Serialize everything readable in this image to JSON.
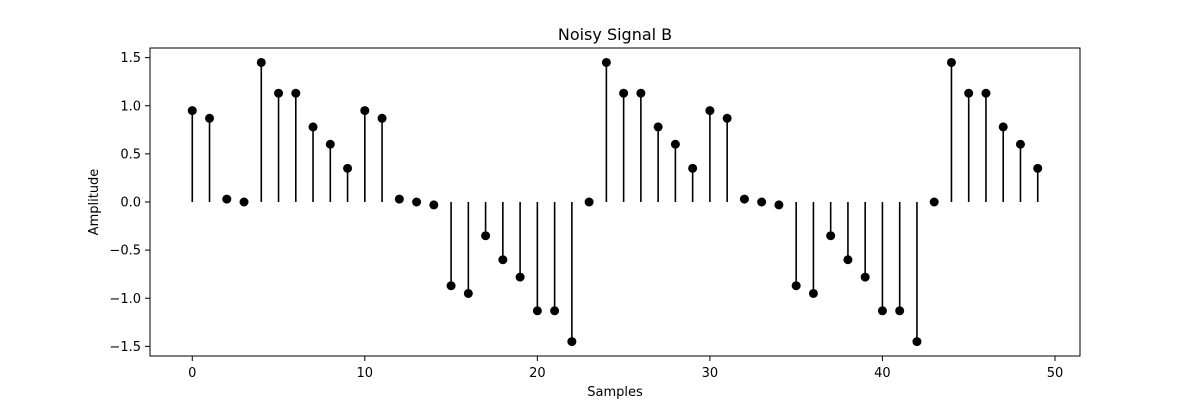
{
  "chart_data": {
    "type": "stem",
    "title": "Noisy Signal B",
    "xlabel": "Samples",
    "ylabel": "Amplitude",
    "xlim": [
      -2.45,
      51.45
    ],
    "ylim": [
      -1.6,
      1.6
    ],
    "xticks": [
      0,
      10,
      20,
      30,
      40,
      50
    ],
    "yticks": [
      -1.5,
      -1.0,
      -0.5,
      0.0,
      0.5,
      1.0,
      1.5
    ],
    "ytick_labels": [
      "−1.5",
      "−1.0",
      "−0.5",
      "0.0",
      "0.5",
      "1.0",
      "1.5"
    ],
    "grid": false,
    "legend": "none",
    "colors": {
      "stem": "#000000",
      "marker": "#000000",
      "axes": "#000000",
      "background": "#ffffff"
    },
    "x": [
      0,
      1,
      2,
      3,
      4,
      5,
      6,
      7,
      8,
      9,
      10,
      11,
      12,
      13,
      14,
      15,
      16,
      17,
      18,
      19,
      20,
      21,
      22,
      23,
      24,
      25,
      26,
      27,
      28,
      29,
      30,
      31,
      32,
      33,
      34,
      35,
      36,
      37,
      38,
      39,
      40,
      41,
      42,
      43,
      44,
      45,
      46,
      47,
      48,
      49
    ],
    "y": [
      0.95,
      0.87,
      0.03,
      0.0,
      1.45,
      1.13,
      1.13,
      0.78,
      0.6,
      0.35,
      0.95,
      0.87,
      0.03,
      0.0,
      -0.03,
      -0.87,
      -0.95,
      -0.35,
      -0.6,
      -0.78,
      -1.13,
      -1.13,
      -1.45,
      0.0,
      1.45,
      1.13,
      1.13,
      0.78,
      0.6,
      0.35,
      0.95,
      0.87,
      0.03,
      0.0,
      -0.03,
      -0.87,
      -0.95,
      -0.35,
      -0.6,
      -0.78,
      -1.13,
      -1.13,
      -1.45,
      0.0,
      1.45,
      1.13,
      1.13,
      0.78,
      0.6,
      0.35
    ]
  }
}
